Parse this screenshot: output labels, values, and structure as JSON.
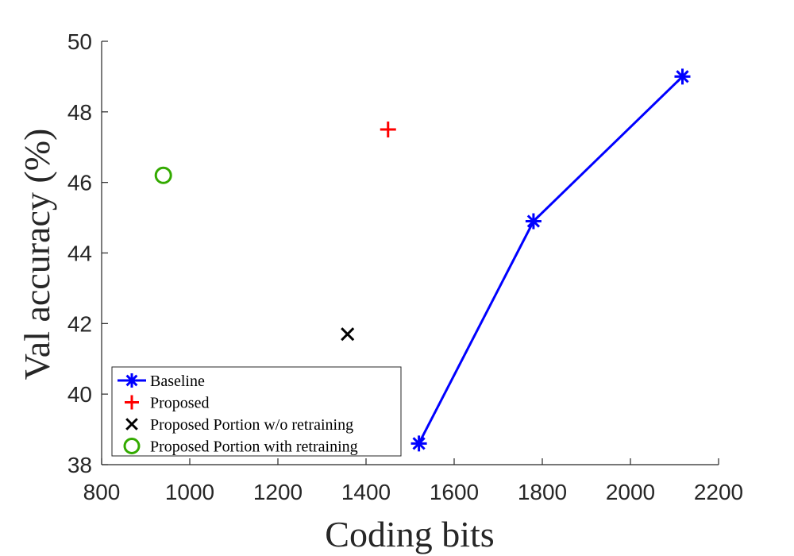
{
  "chart_data": {
    "type": "scatter",
    "xlabel": "Coding bits",
    "ylabel": "Val accuracy (%)",
    "xlim": [
      800,
      2200
    ],
    "ylim": [
      38,
      50
    ],
    "xticks": [
      800,
      1000,
      1200,
      1400,
      1600,
      1800,
      2000,
      2200
    ],
    "yticks": [
      38,
      40,
      42,
      44,
      46,
      48,
      50
    ],
    "grid": false,
    "legend_position": "bottom-left",
    "series": [
      {
        "name": "Baseline",
        "marker": "asterisk",
        "line": true,
        "color": "#0000ff",
        "points": [
          {
            "x": 1520,
            "y": 38.6
          },
          {
            "x": 1780,
            "y": 44.9
          },
          {
            "x": 2118,
            "y": 49.0
          }
        ]
      },
      {
        "name": "Proposed",
        "marker": "plus",
        "line": false,
        "color": "#ff0000",
        "points": [
          {
            "x": 1450,
            "y": 47.5
          }
        ]
      },
      {
        "name": "Proposed Portion w/o retraining",
        "marker": "x",
        "line": false,
        "color": "#000000",
        "points": [
          {
            "x": 1358,
            "y": 41.7
          }
        ]
      },
      {
        "name": "Proposed Portion with retraining",
        "marker": "circle",
        "line": false,
        "color": "#33aa00",
        "points": [
          {
            "x": 940,
            "y": 46.2
          }
        ]
      }
    ]
  }
}
